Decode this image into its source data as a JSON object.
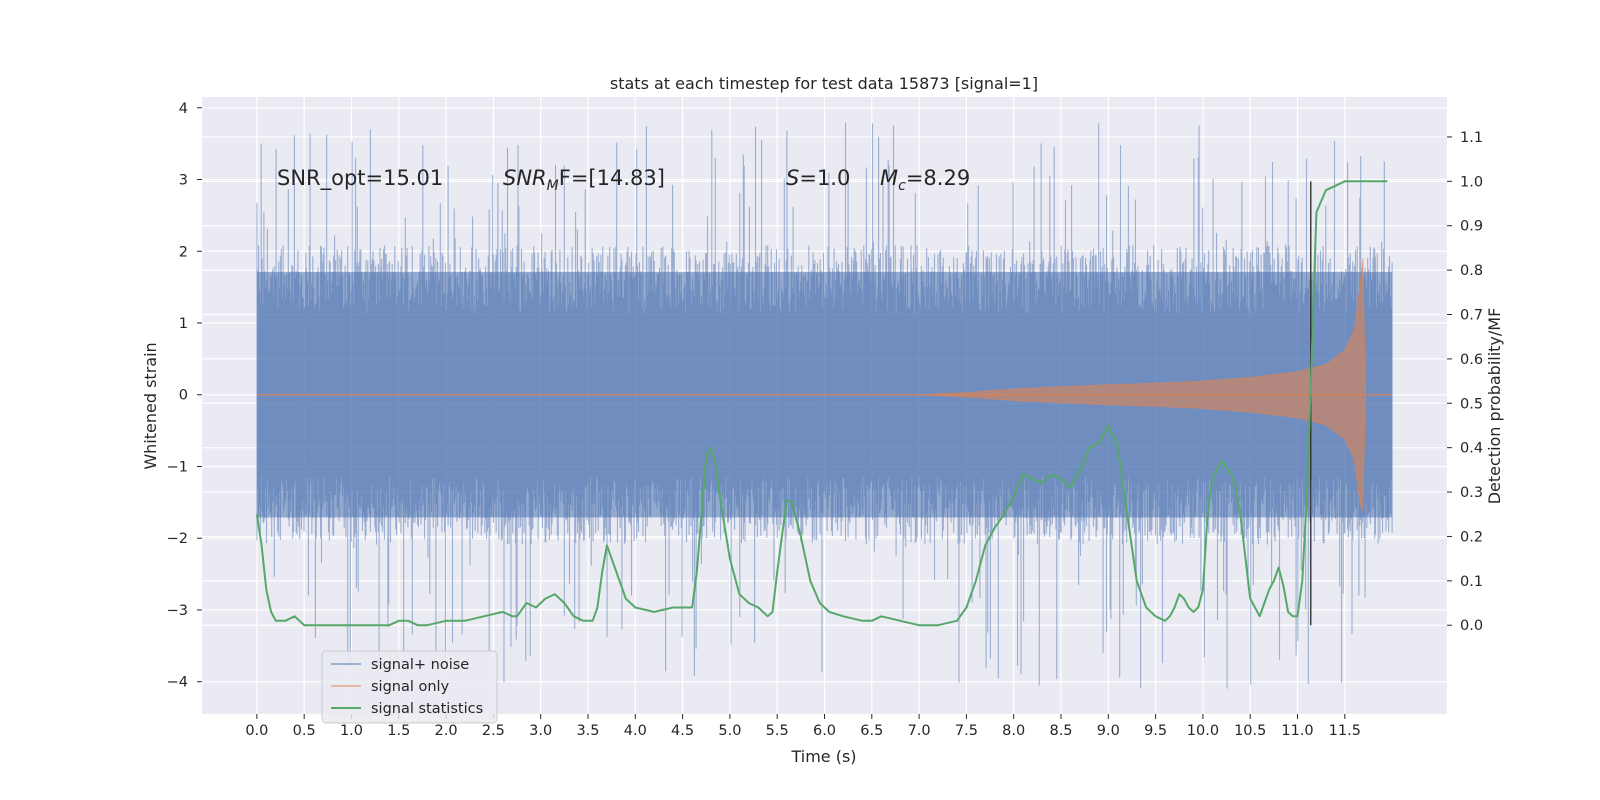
{
  "chart_data": {
    "type": "line",
    "title": "stats at each timestep for test data 15873 [signal=1]",
    "xlabel": "Time (s)",
    "ylabel_left": "Whitened strain",
    "ylabel_right": "Detection probability/MF",
    "xlim": [
      -0.58,
      12.58
    ],
    "ylim_left": [
      -4.45,
      4.15
    ],
    "ylim_right": [
      -0.2,
      1.19
    ],
    "x_ticks": [
      "0.0",
      "0.5",
      "1.0",
      "1.5",
      "2.0",
      "2.5",
      "3.0",
      "3.5",
      "4.0",
      "4.5",
      "5.0",
      "5.5",
      "6.0",
      "6.5",
      "7.0",
      "7.5",
      "8.0",
      "8.5",
      "9.0",
      "9.5",
      "10.0",
      "10.5",
      "11.0",
      "11.5"
    ],
    "y_ticks_left": [
      "4",
      "3",
      "2",
      "1",
      "0",
      "−1",
      "−2",
      "−3",
      "−4"
    ],
    "y_ticks_right": [
      "1.1",
      "1.0",
      "0.9",
      "0.8",
      "0.7",
      "0.6",
      "0.5",
      "0.4",
      "0.3",
      "0.2",
      "0.1",
      "0.0"
    ],
    "grid": true,
    "legend_position": "lower-left",
    "annotations": {
      "snr_opt": "SNR_opt=15.01",
      "snr_mf_main": "SNR",
      "snr_mf_sub": "M",
      "snr_mf_rest": "F=[14.83]",
      "s_symbol": "S",
      "s_value": "=1.0",
      "mc_symbol": "M",
      "mc_sub": "c",
      "mc_value": "=8.29"
    },
    "detection_time": 11.14,
    "series": [
      {
        "name": "signal+ noise",
        "axis": "left",
        "color": "#4c72b0",
        "x_range": [
          0.0,
          12.0
        ],
        "envelope_upper": 1.9,
        "envelope_lower": -1.9,
        "peak_max": 3.8,
        "peak_min": -4.1
      },
      {
        "name": "signal only",
        "axis": "left",
        "color": "#dd8452",
        "x_range": [
          0.0,
          12.0
        ],
        "amplitude_points": [
          [
            0.0,
            0.0
          ],
          [
            7.0,
            0.0
          ],
          [
            7.5,
            0.03
          ],
          [
            8.0,
            0.08
          ],
          [
            8.5,
            0.11
          ],
          [
            9.0,
            0.14
          ],
          [
            9.5,
            0.16
          ],
          [
            10.0,
            0.19
          ],
          [
            10.5,
            0.24
          ],
          [
            11.0,
            0.32
          ],
          [
            11.3,
            0.42
          ],
          [
            11.5,
            0.62
          ],
          [
            11.6,
            0.9
          ],
          [
            11.66,
            1.5
          ],
          [
            11.69,
            1.9
          ],
          [
            11.72,
            0.0
          ],
          [
            12.0,
            0.0
          ]
        ]
      },
      {
        "name": "signal statistics",
        "axis": "right",
        "color": "#55a868",
        "x": [
          0.0,
          0.05,
          0.1,
          0.15,
          0.2,
          0.3,
          0.4,
          0.5,
          0.6,
          0.8,
          1.0,
          1.2,
          1.4,
          1.5,
          1.6,
          1.7,
          1.8,
          2.0,
          2.2,
          2.4,
          2.6,
          2.7,
          2.75,
          2.85,
          2.95,
          3.05,
          3.15,
          3.25,
          3.35,
          3.45,
          3.55,
          3.6,
          3.65,
          3.7,
          3.8,
          3.9,
          4.0,
          4.2,
          4.4,
          4.5,
          4.6,
          4.65,
          4.75,
          4.8,
          4.85,
          4.9,
          5.0,
          5.1,
          5.2,
          5.3,
          5.4,
          5.45,
          5.5,
          5.55,
          5.6,
          5.65,
          5.75,
          5.85,
          5.95,
          6.05,
          6.2,
          6.4,
          6.5,
          6.6,
          6.8,
          7.0,
          7.2,
          7.4,
          7.5,
          7.6,
          7.7,
          7.8,
          7.9,
          7.95,
          8.0,
          8.1,
          8.2,
          8.3,
          8.4,
          8.5,
          8.6,
          8.7,
          8.8,
          8.9,
          9.0,
          9.1,
          9.2,
          9.3,
          9.4,
          9.5,
          9.6,
          9.65,
          9.7,
          9.75,
          9.8,
          9.85,
          9.9,
          9.95,
          10.0,
          10.05,
          10.1,
          10.2,
          10.3,
          10.35,
          10.4,
          10.5,
          10.55,
          10.6,
          10.65,
          10.7,
          10.75,
          10.8,
          10.85,
          10.9,
          10.95,
          11.0,
          11.05,
          11.1,
          11.15,
          11.2,
          11.3,
          11.4,
          11.5,
          11.6,
          11.7,
          11.8,
          11.9,
          11.95
        ],
        "y": [
          0.25,
          0.18,
          0.08,
          0.03,
          0.01,
          0.01,
          0.02,
          0.0,
          0.0,
          0.0,
          0.0,
          0.0,
          0.0,
          0.01,
          0.01,
          0.0,
          0.0,
          0.01,
          0.01,
          0.02,
          0.03,
          0.02,
          0.02,
          0.05,
          0.04,
          0.06,
          0.07,
          0.05,
          0.02,
          0.01,
          0.01,
          0.04,
          0.12,
          0.18,
          0.12,
          0.06,
          0.04,
          0.03,
          0.04,
          0.04,
          0.04,
          0.12,
          0.38,
          0.4,
          0.36,
          0.28,
          0.15,
          0.07,
          0.05,
          0.04,
          0.02,
          0.03,
          0.12,
          0.2,
          0.28,
          0.28,
          0.2,
          0.1,
          0.05,
          0.03,
          0.02,
          0.01,
          0.01,
          0.02,
          0.01,
          0.0,
          0.0,
          0.01,
          0.04,
          0.1,
          0.18,
          0.22,
          0.25,
          0.27,
          0.29,
          0.34,
          0.33,
          0.32,
          0.34,
          0.33,
          0.31,
          0.35,
          0.4,
          0.41,
          0.45,
          0.4,
          0.25,
          0.1,
          0.04,
          0.02,
          0.01,
          0.02,
          0.04,
          0.07,
          0.06,
          0.04,
          0.03,
          0.04,
          0.08,
          0.25,
          0.33,
          0.37,
          0.34,
          0.31,
          0.24,
          0.06,
          0.04,
          0.02,
          0.05,
          0.08,
          0.1,
          0.13,
          0.09,
          0.03,
          0.02,
          0.02,
          0.1,
          0.3,
          0.6,
          0.93,
          0.98,
          0.99,
          1.0,
          1.0,
          1.0,
          1.0,
          1.0,
          1.0
        ]
      }
    ]
  }
}
